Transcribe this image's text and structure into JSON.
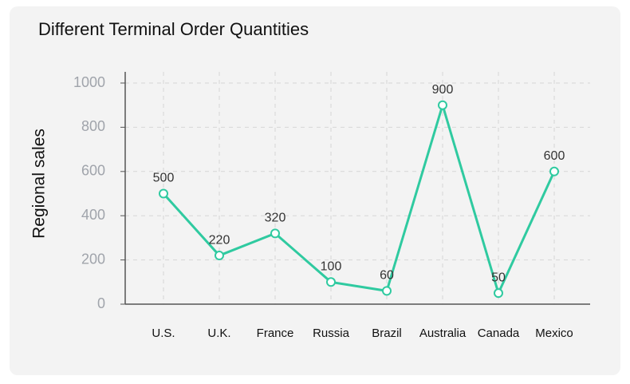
{
  "chart_data": {
    "type": "line",
    "title": "Different Terminal Order Quantities",
    "y_label": "Regional sales",
    "categories": [
      "U.S.",
      "U.K.",
      "France",
      "Russia",
      "Brazil",
      "Australia",
      "Canada",
      "Mexico"
    ],
    "values": [
      500,
      220,
      320,
      100,
      60,
      900,
      50,
      600
    ],
    "color": "#2fcaa0",
    "ylim": [
      0,
      1000
    ],
    "yticks": [
      0,
      200,
      400,
      600,
      800,
      1000
    ],
    "grid": true
  }
}
